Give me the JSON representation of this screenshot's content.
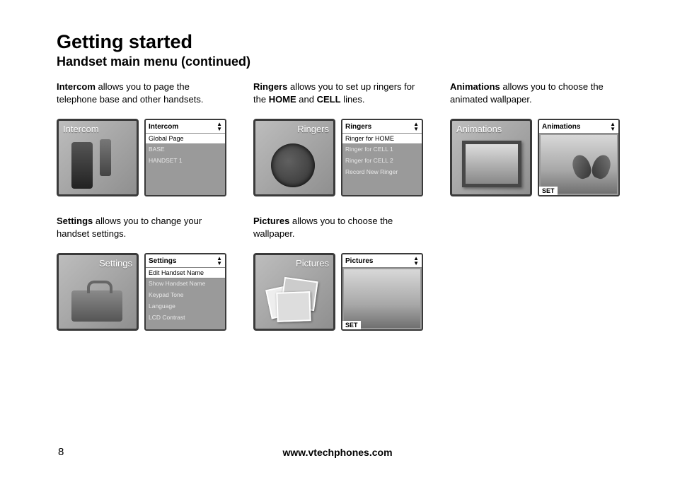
{
  "page": {
    "title": "Getting started",
    "subtitle": "Handset main menu (continued)",
    "number": "8",
    "url": "www.vtechphones.com"
  },
  "sections": {
    "intercom": {
      "desc_prefix": "Intercom",
      "desc_rest": " allows you to page the telephone base and other handsets.",
      "icon_label": "Intercom",
      "menu_title": "Intercom",
      "selected": "Global Page",
      "items": [
        "BASE",
        "HANDSET 1"
      ]
    },
    "ringers": {
      "desc_prefix": "Ringers",
      "desc_mid": " allows you to set up ringers for the ",
      "desc_bold2": "HOME",
      "desc_mid2": " and ",
      "desc_bold3": "CELL",
      "desc_end": " lines.",
      "icon_label": "Ringers",
      "menu_title": "Ringers",
      "selected": "Ringer for HOME",
      "items": [
        "Ringer for CELL 1",
        "Ringer for CELL 2",
        "Record New Ringer"
      ]
    },
    "animations": {
      "desc_prefix": "Animations",
      "desc_rest": " allows you to choose the animated wallpaper.",
      "icon_label": "Animations",
      "menu_title": "Animations",
      "footer": "SET"
    },
    "settings": {
      "desc_prefix": "Settings",
      "desc_rest": " allows you to change your handset settings.",
      "icon_label": "Settings",
      "menu_title": "Settings",
      "selected": "Edit Handset Name",
      "items": [
        "Show Handset Name",
        "Keypad Tone",
        "Language",
        "LCD Contrast"
      ]
    },
    "pictures": {
      "desc_prefix": "Pictures",
      "desc_rest": " allows you to choose the wallpaper.",
      "icon_label": "Pictures",
      "menu_title": "Pictures",
      "footer": "SET"
    }
  },
  "colors": {
    "text": "#000000",
    "tile_border": "#3a3a3a",
    "tile_bg_light": "#bdbdbd",
    "tile_bg_dark": "#8f8f8f",
    "menu_bg": "#9a9a9a",
    "menu_item_text": "#e8e8e8",
    "white": "#ffffff"
  }
}
